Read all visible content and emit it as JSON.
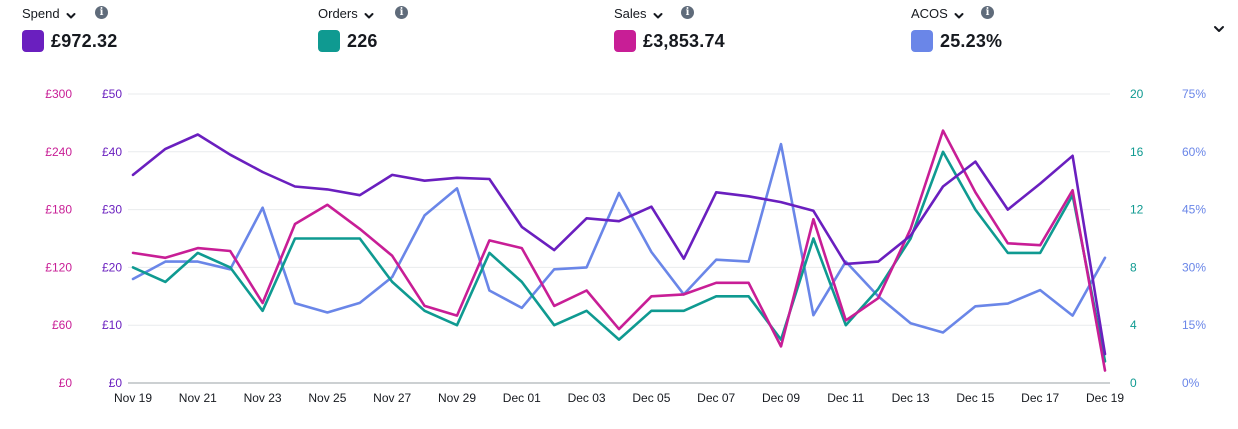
{
  "metrics": [
    {
      "name": "Spend",
      "value": "£972.32",
      "color": "#6a1fbf",
      "dropdown_icon": "chevron-down-icon",
      "info_icon": "info-icon"
    },
    {
      "name": "Orders",
      "value": "226",
      "color": "#0f9a91",
      "dropdown_icon": "chevron-down-icon",
      "info_icon": "info-icon"
    },
    {
      "name": "Sales",
      "value": "£3,853.74",
      "color": "#c81e96",
      "dropdown_icon": "chevron-down-icon",
      "info_icon": "info-icon"
    },
    {
      "name": "ACOS",
      "value": "25.23%",
      "color": "#6a86e8",
      "dropdown_icon": "chevron-down-icon",
      "info_icon": "info-icon"
    }
  ],
  "collapse_icon": "chevron-down-icon",
  "chart_data": {
    "type": "line",
    "grid": true,
    "x": [
      "Nov 19",
      "Nov 20",
      "Nov 21",
      "Nov 22",
      "Nov 23",
      "Nov 24",
      "Nov 25",
      "Nov 26",
      "Nov 27",
      "Nov 28",
      "Nov 29",
      "Nov 30",
      "Dec 01",
      "Dec 02",
      "Dec 03",
      "Dec 04",
      "Dec 05",
      "Dec 06",
      "Dec 07",
      "Dec 08",
      "Dec 09",
      "Dec 10",
      "Dec 11",
      "Dec 12",
      "Dec 13",
      "Dec 14",
      "Dec 15",
      "Dec 16",
      "Dec 17",
      "Dec 18",
      "Dec 19"
    ],
    "x_tick_labels": [
      "Nov 19",
      "Nov 21",
      "Nov 23",
      "Nov 25",
      "Nov 27",
      "Nov 29",
      "Dec 01",
      "Dec 03",
      "Dec 05",
      "Dec 07",
      "Dec 09",
      "Dec 11",
      "Dec 13",
      "Dec 15",
      "Dec 17",
      "Dec 19"
    ],
    "axes": {
      "sales": {
        "side": "left",
        "ticks": [
          "£0",
          "£60",
          "£120",
          "£180",
          "£240",
          "£300"
        ],
        "range": [
          0,
          300
        ],
        "color": "#c81e96"
      },
      "spend": {
        "side": "left",
        "ticks": [
          "£0",
          "£10",
          "£20",
          "£30",
          "£40",
          "£50"
        ],
        "range": [
          0,
          50
        ],
        "color": "#6a1fbf"
      },
      "orders": {
        "side": "right",
        "ticks": [
          "0",
          "4",
          "8",
          "12",
          "16",
          "20"
        ],
        "range": [
          0,
          20
        ],
        "color": "#0f9a91"
      },
      "acos": {
        "side": "right",
        "ticks": [
          "0%",
          "15%",
          "30%",
          "45%",
          "60%",
          "75%"
        ],
        "range": [
          0,
          75
        ],
        "color": "#6a86e8"
      }
    },
    "series": [
      {
        "name": "Spend",
        "axis": "spend",
        "color": "#6a1fbf",
        "values": [
          36,
          40.5,
          43,
          39.5,
          36.5,
          34,
          33.5,
          32.5,
          36,
          35,
          35.5,
          35.3,
          27,
          23,
          28.5,
          28,
          30.5,
          21.5,
          33,
          32.3,
          31.3,
          29.8,
          20.6,
          21,
          25.5,
          34,
          38.3,
          30,
          34.5,
          39.3,
          5
        ]
      },
      {
        "name": "Orders",
        "axis": "orders",
        "color": "#0f9a91",
        "values": [
          8,
          7,
          9,
          8,
          5,
          10,
          10,
          10,
          7,
          5,
          4,
          9,
          7,
          4,
          5,
          3,
          5,
          5,
          6,
          6,
          3,
          10,
          4,
          6.5,
          10,
          16,
          12,
          9,
          9,
          13,
          1.5
        ]
      },
      {
        "name": "Sales",
        "axis": "sales",
        "color": "#c81e96",
        "values": [
          135,
          130,
          140,
          137,
          83,
          165,
          185,
          160,
          132,
          80,
          70,
          148,
          140,
          80,
          96,
          56,
          90,
          92,
          104,
          104,
          38,
          170,
          65,
          88,
          160,
          262,
          198,
          145,
          143,
          200,
          13
        ]
      },
      {
        "name": "ACOS",
        "axis": "acos",
        "color": "#6a86e8",
        "values": [
          27,
          31.5,
          31.5,
          29.5,
          45.5,
          20.7,
          18.3,
          20.8,
          27.5,
          43.5,
          50.5,
          24,
          19.5,
          29.5,
          30,
          49.3,
          34,
          23,
          32,
          31.5,
          62,
          17.6,
          31.5,
          22.5,
          15.5,
          13.1,
          19.9,
          20.6,
          24.1,
          17.5,
          32.5
        ]
      }
    ]
  }
}
